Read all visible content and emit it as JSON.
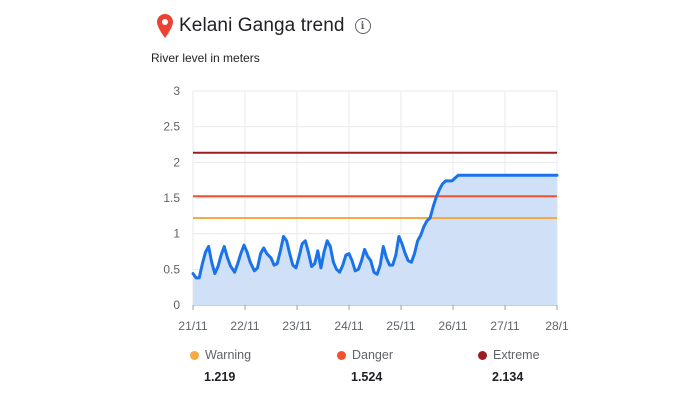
{
  "header": {
    "title": "Kelani Ganga trend",
    "info_icon": "info-icon",
    "pin_icon": "location-pin-icon",
    "pin_color": "#ea4335"
  },
  "chart_data": {
    "type": "area",
    "title": "Kelani Ganga trend",
    "ylabel": "River level in meters",
    "xlabel": "",
    "ylim": [
      0,
      3
    ],
    "yticks": [
      "0",
      "0.5",
      "1",
      "1.5",
      "2",
      "2.5",
      "3"
    ],
    "xticks": [
      "21/11",
      "22/11",
      "23/11",
      "24/11",
      "25/11",
      "26/11",
      "27/11",
      "28/1"
    ],
    "grid": true,
    "line_color": "#1a73e8",
    "fill_color": "#cfe0f7",
    "series": [
      {
        "x": [
          0,
          0.06,
          0.12,
          0.18,
          0.24,
          0.3,
          0.36,
          0.42,
          0.48,
          0.54,
          0.6,
          0.66,
          0.72,
          0.8,
          0.86,
          0.92,
          0.98,
          1.04,
          1.1,
          1.18,
          1.24,
          1.3,
          1.36,
          1.42,
          1.5,
          1.56,
          1.62,
          1.68,
          1.74,
          1.8,
          1.86,
          1.92,
          1.98,
          2.04,
          2.1,
          2.16,
          2.22,
          2.28,
          2.34,
          2.4,
          2.46,
          2.52,
          2.58,
          2.64,
          2.7,
          2.76,
          2.82,
          2.88,
          2.94,
          3.0,
          3.06,
          3.12,
          3.18,
          3.24,
          3.3,
          3.36,
          3.42,
          3.48,
          3.54,
          3.6,
          3.66,
          3.72,
          3.78,
          3.84,
          3.9,
          3.96,
          4.02,
          4.08,
          4.14,
          4.2,
          4.26,
          4.32,
          4.38,
          4.44,
          4.5,
          4.56,
          4.62,
          4.68,
          4.74,
          4.8,
          4.86,
          4.92,
          4.98,
          5.04,
          5.1,
          5.16,
          5.22,
          5.28,
          5.34,
          5.4,
          5.46,
          5.52,
          5.58,
          5.64,
          5.7,
          5.76,
          5.82,
          5.88,
          5.94,
          6.0,
          6.06,
          6.12,
          6.18,
          6.24,
          6.3,
          6.36,
          6.42,
          6.48,
          6.54,
          6.6,
          6.66,
          6.72,
          6.78,
          6.84,
          6.9,
          6.96,
          7.0
        ],
        "values": [
          0.44,
          0.38,
          0.38,
          0.58,
          0.74,
          0.82,
          0.6,
          0.44,
          0.54,
          0.7,
          0.82,
          0.67,
          0.55,
          0.46,
          0.58,
          0.72,
          0.84,
          0.74,
          0.6,
          0.48,
          0.52,
          0.72,
          0.8,
          0.72,
          0.66,
          0.56,
          0.58,
          0.76,
          0.96,
          0.9,
          0.72,
          0.56,
          0.52,
          0.68,
          0.86,
          0.9,
          0.74,
          0.54,
          0.58,
          0.76,
          0.52,
          0.74,
          0.9,
          0.82,
          0.6,
          0.5,
          0.46,
          0.56,
          0.7,
          0.72,
          0.62,
          0.48,
          0.5,
          0.62,
          0.78,
          0.68,
          0.62,
          0.46,
          0.43,
          0.56,
          0.82,
          0.66,
          0.56,
          0.56,
          0.7,
          0.96,
          0.86,
          0.72,
          0.62,
          0.6,
          0.72,
          0.9,
          0.98,
          1.1,
          1.18,
          1.22,
          1.38,
          1.52,
          1.62,
          1.7,
          1.74,
          1.74,
          1.74,
          1.78,
          1.82,
          1.82,
          1.82,
          1.82,
          1.82,
          1.82,
          1.82,
          1.82,
          1.82,
          1.82,
          1.82,
          1.82,
          1.82,
          1.82,
          1.82,
          1.82,
          1.82,
          1.82,
          1.82,
          1.82,
          1.82,
          1.82,
          1.82,
          1.82,
          1.82,
          1.82,
          1.82,
          1.82,
          1.82,
          1.82,
          1.82,
          1.82,
          1.82
        ]
      }
    ],
    "thresholds": [
      {
        "name": "Warning",
        "value": 1.219,
        "label": "1.219",
        "color": "#f7a943"
      },
      {
        "name": "Danger",
        "value": 1.524,
        "label": "1.524",
        "color": "#f1512e"
      },
      {
        "name": "Extreme",
        "value": 2.134,
        "label": "2.134",
        "color": "#9b1d21"
      }
    ]
  },
  "legend": {
    "warning": {
      "name": "Warning",
      "value": "1.219"
    },
    "danger": {
      "name": "Danger",
      "value": "1.524"
    },
    "extreme": {
      "name": "Extreme",
      "value": "2.134"
    }
  }
}
